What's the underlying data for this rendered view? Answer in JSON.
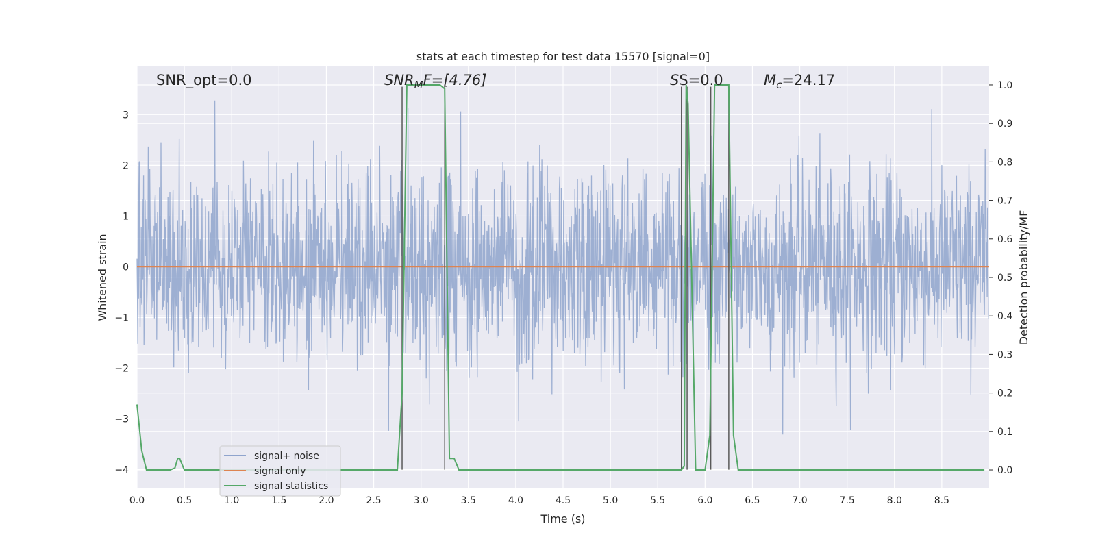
{
  "chart_data": {
    "type": "line",
    "title": "stats at each timestep for test data 15570 [signal=0]",
    "xlabel": "Time (s)",
    "ylabel": "Whitened strain",
    "y2label": "Detection probability/MF",
    "xlim": [
      0.0,
      9.0
    ],
    "ylim": [
      -4.37,
      3.95
    ],
    "y2lim": [
      -0.048,
      1.048
    ],
    "x_ticks": [
      "0.0",
      "0.5",
      "1.0",
      "1.5",
      "2.0",
      "2.5",
      "3.0",
      "3.5",
      "4.0",
      "4.5",
      "5.0",
      "5.5",
      "6.0",
      "6.5",
      "7.0",
      "7.5",
      "8.0",
      "8.5"
    ],
    "y_ticks": [
      "3",
      "2",
      "1",
      "0",
      "−1",
      "−2",
      "−3",
      "−4"
    ],
    "y2_ticks": [
      "1.0",
      "0.9",
      "0.8",
      "0.7",
      "0.6",
      "0.5",
      "0.4",
      "0.3",
      "0.2",
      "0.1",
      "0.0"
    ],
    "grid": true,
    "legend_placement": "lower-left",
    "annotations": {
      "snr_opt": "SNR_opt=0.0",
      "snr_mf_prefix": "SNR",
      "snr_mf_sub": "M",
      "snr_mf_suffix": "F=[4.76]",
      "s_value": "S=0.0",
      "mc_prefix": "M",
      "mc_sub": "c",
      "mc_suffix": "=24.17"
    },
    "series": [
      {
        "name": "signal+ noise",
        "color": "#8fa4cd",
        "kind": "noise",
        "amplitude_typical": 1.8,
        "amplitude_max": 3.4
      },
      {
        "name": "signal only",
        "color": "#dd8452",
        "kind": "constant",
        "value": 0.0
      },
      {
        "name": "signal statistics",
        "color": "#55a868",
        "kind": "line",
        "axis": "right",
        "x": [
          0.0,
          0.05,
          0.1,
          0.2,
          0.3,
          0.35,
          0.4,
          0.43,
          0.45,
          0.5,
          1.0,
          2.0,
          2.5,
          2.75,
          2.8,
          2.85,
          2.9,
          3.0,
          3.1,
          3.2,
          3.25,
          3.3,
          3.35,
          3.4,
          3.5,
          4.0,
          5.0,
          5.5,
          5.7,
          5.75,
          5.78,
          5.8,
          5.82,
          5.85,
          5.9,
          5.95,
          6.0,
          6.05,
          6.1,
          6.15,
          6.2,
          6.25,
          6.3,
          6.35,
          6.4,
          7.0,
          8.0,
          8.95
        ],
        "y": [
          0.17,
          0.05,
          0.0,
          0.0,
          0.0,
          0.0,
          0.005,
          0.03,
          0.03,
          0.0,
          0.0,
          0.0,
          0.0,
          0.0,
          0.2,
          1.0,
          1.0,
          1.0,
          1.0,
          1.0,
          0.99,
          0.03,
          0.03,
          0.0,
          0.0,
          0.0,
          0.0,
          0.0,
          0.0,
          0.0,
          0.01,
          1.0,
          0.95,
          0.6,
          0.0,
          0.0,
          0.0,
          0.09,
          1.0,
          1.0,
          1.0,
          1.0,
          0.09,
          0.0,
          0.0,
          0.0,
          0.0,
          0.0
        ]
      },
      {
        "name": "",
        "color": "#595959",
        "kind": "vlines",
        "x": [
          2.8,
          3.25,
          5.75,
          5.81,
          6.06,
          6.25
        ],
        "top": 3.55,
        "bottom": -4.0
      }
    ]
  }
}
